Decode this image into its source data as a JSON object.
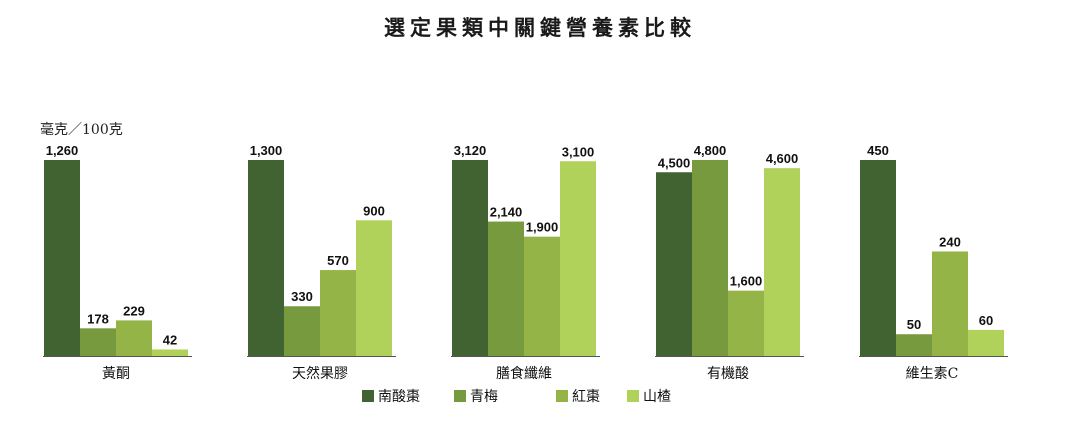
{
  "chart_data": {
    "type": "bar",
    "title": "選定果類中關鍵營養素比較",
    "unit": "毫克／100克",
    "groups": [
      {
        "category": "黃酮",
        "values": [
          1260,
          178,
          229,
          42
        ]
      },
      {
        "category": "天然果膠",
        "values": [
          1300,
          330,
          570,
          900
        ]
      },
      {
        "category": "膳食纖維",
        "values": [
          3120,
          2140,
          1900,
          3100
        ]
      },
      {
        "category": "有機酸",
        "values": [
          4500,
          4800,
          1600,
          4600
        ]
      },
      {
        "category": "維生素C",
        "values": [
          450,
          50,
          240,
          60
        ]
      }
    ],
    "series": [
      {
        "name": "南酸棗",
        "color": "#416231"
      },
      {
        "name": "青梅",
        "color": "#789a3f"
      },
      {
        "name": "紅棗",
        "color": "#95b447"
      },
      {
        "name": "山楂",
        "color": "#b0d15a"
      }
    ],
    "independent_scale_per_group": true,
    "legend_position": "bottom",
    "grid": false
  }
}
